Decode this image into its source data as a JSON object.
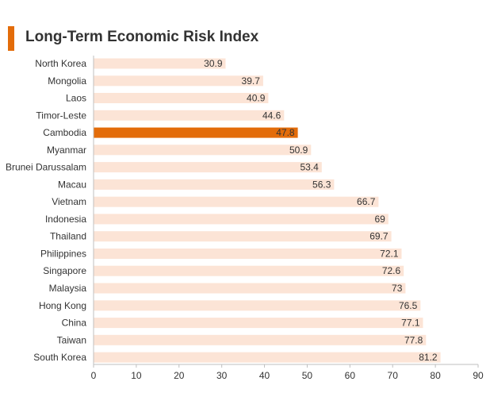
{
  "colors": {
    "accent": "#e36c0a",
    "bar": "#fce4d6",
    "highlight": "#e36c0a",
    "text": "#333333",
    "axis": "#bfbfbf"
  },
  "chart_data": {
    "type": "bar",
    "orientation": "horizontal",
    "title": "Long-Term Economic Risk Index",
    "categories": [
      "North Korea",
      "Mongolia",
      "Laos",
      "Timor-Leste",
      "Cambodia",
      "Myanmar",
      "Brunei Darussalam",
      "Macau",
      "Vietnam",
      "Indonesia",
      "Thailand",
      "Philippines",
      "Singapore",
      "Malaysia",
      "Hong Kong",
      "China",
      "Taiwan",
      "South Korea"
    ],
    "values": [
      30.9,
      39.7,
      40.9,
      44.6,
      47.8,
      50.9,
      53.4,
      56.3,
      66.7,
      69,
      69.7,
      72.1,
      72.6,
      73,
      76.5,
      77.1,
      77.8,
      81.2
    ],
    "value_labels": [
      "30.9",
      "39.7",
      "40.9",
      "44.6",
      "47.8",
      "50.9",
      "53.4",
      "56.3",
      "66.7",
      "69",
      "69.7",
      "72.1",
      "72.6",
      "73",
      "76.5",
      "77.1",
      "77.8",
      "81.2"
    ],
    "highlight": "Cambodia",
    "xlim": [
      0,
      90
    ],
    "xticks": [
      0,
      10,
      20,
      30,
      40,
      50,
      60,
      70,
      80,
      90
    ],
    "xtick_labels": [
      "0",
      "10",
      "20",
      "30",
      "40",
      "50",
      "60",
      "70",
      "80",
      "90"
    ],
    "grid": false,
    "legend": "none"
  }
}
